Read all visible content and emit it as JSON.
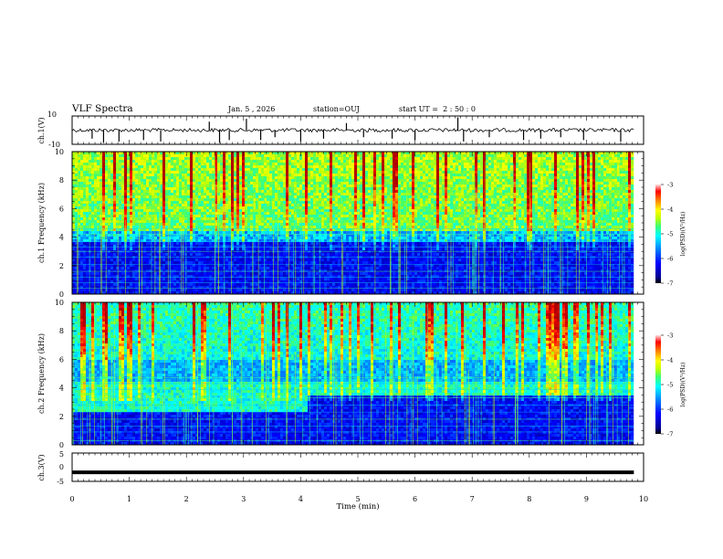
{
  "header": {
    "title": "VLF Spectra",
    "date": "Jan. 5 , 2026",
    "station": "station=OUJ",
    "start": "start UT =  2 : 50 : 0"
  },
  "chart_data": [
    {
      "type": "line",
      "name": "ch1-waveform",
      "ylabel": "ch.1(V)",
      "ylim": [
        -10,
        10
      ],
      "yticks": [
        "10",
        "-10"
      ],
      "xlim": [
        0,
        10
      ],
      "baseline": 0,
      "spikes": [
        {
          "x": 0.35,
          "y": -6
        },
        {
          "x": 0.55,
          "y": -9
        },
        {
          "x": 0.82,
          "y": -8
        },
        {
          "x": 1.25,
          "y": -7
        },
        {
          "x": 1.55,
          "y": -8
        },
        {
          "x": 2.4,
          "y": 6
        },
        {
          "x": 2.58,
          "y": -9
        },
        {
          "x": 2.75,
          "y": -7
        },
        {
          "x": 3.05,
          "y": 8
        },
        {
          "x": 3.3,
          "y": -7
        },
        {
          "x": 3.55,
          "y": -5
        },
        {
          "x": 4.0,
          "y": -8
        },
        {
          "x": 4.4,
          "y": -6
        },
        {
          "x": 4.8,
          "y": 5
        },
        {
          "x": 5.1,
          "y": -5
        },
        {
          "x": 5.6,
          "y": -6
        },
        {
          "x": 6.0,
          "y": -7
        },
        {
          "x": 6.75,
          "y": 9
        },
        {
          "x": 6.85,
          "y": -8
        },
        {
          "x": 7.3,
          "y": -5
        },
        {
          "x": 7.9,
          "y": -7
        },
        {
          "x": 8.2,
          "y": -6
        },
        {
          "x": 8.55,
          "y": -5
        },
        {
          "x": 8.95,
          "y": -7
        },
        {
          "x": 9.6,
          "y": -8
        }
      ]
    },
    {
      "type": "heatmap",
      "name": "ch1-spectrogram",
      "ylabel": "ch.1 Frequency (kHz)",
      "ylim": [
        0,
        10
      ],
      "yticks": [
        "0",
        "2",
        "4",
        "6",
        "8",
        "10"
      ],
      "xlim": [
        0,
        9.83
      ],
      "colorbar": {
        "label": "log(PSD)(V²/Hz)",
        "range": [
          -7,
          -3
        ],
        "ticks": [
          "-3",
          "-4",
          "-5",
          "-6",
          "-7"
        ]
      }
    },
    {
      "type": "heatmap",
      "name": "ch2-spectrogram",
      "ylabel": "ch.2 Frequency (kHz)",
      "ylim": [
        0,
        10
      ],
      "yticks": [
        "0",
        "2",
        "4",
        "6",
        "8",
        "10"
      ],
      "xlim": [
        0,
        9.83
      ],
      "band_shift_time": 4.1,
      "colorbar": {
        "label": "log(PSD)(V²/Hz)",
        "range": [
          -7,
          -3
        ],
        "ticks": [
          "-3",
          "-4",
          "-5",
          "-6",
          "-7"
        ]
      }
    },
    {
      "type": "line",
      "name": "ch3-waveform",
      "ylabel": "ch.3(V)",
      "ylim": [
        -5,
        5
      ],
      "yticks": [
        "5",
        "0",
        "-5"
      ],
      "xlim": [
        0,
        10
      ],
      "series": [
        {
          "name": "ch.3",
          "x": [
            0,
            9.83
          ],
          "y": [
            -1.8,
            -1.8
          ]
        }
      ]
    }
  ],
  "x_axis": {
    "label": "Time (min)",
    "ticks": [
      "0",
      "1",
      "2",
      "3",
      "4",
      "5",
      "6",
      "7",
      "8",
      "9",
      "10"
    ],
    "range": [
      0,
      10
    ]
  },
  "colors": {
    "scale": [
      "#000080",
      "#0000ff",
      "#0090ff",
      "#00ffff",
      "#40ff90",
      "#c0ff00",
      "#ffff00",
      "#ff9000",
      "#ff0000",
      "#b00000"
    ]
  }
}
